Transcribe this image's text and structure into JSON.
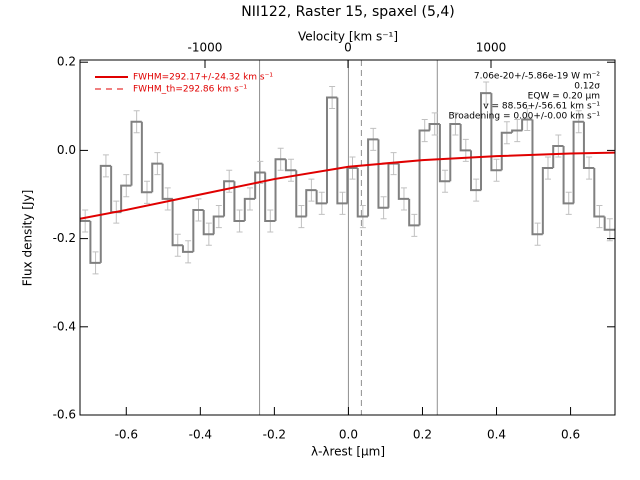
{
  "chart_data": {
    "type": "step",
    "title": "NII122, Raster 15, spaxel (5,4)",
    "xlabel": "λ-λrest [μm]",
    "ylabel": "Flux density [Jy]",
    "x2label": "Velocity [km s⁻¹]",
    "xlim": [
      -0.725,
      0.72
    ],
    "ylim": [
      -0.6,
      0.205
    ],
    "x2lim": [
      -1874,
      1867
    ],
    "xticks": [
      -0.6,
      -0.4,
      -0.2,
      {
        "value": 0,
        "label": "0.0"
      },
      0.2,
      0.4,
      0.6
    ],
    "yticks": [
      -0.6,
      -0.4,
      -0.2,
      {
        "value": 0,
        "label": "0.0"
      },
      0.2
    ],
    "x2ticks": [
      -1000,
      0,
      1000
    ],
    "color": "#808080",
    "x": [
      -0.711,
      -0.683,
      -0.655,
      -0.627,
      -0.6,
      -0.572,
      -0.544,
      -0.516,
      -0.488,
      -0.461,
      -0.433,
      -0.405,
      -0.377,
      -0.35,
      -0.322,
      -0.294,
      -0.266,
      -0.238,
      -0.211,
      -0.183,
      -0.155,
      -0.127,
      -0.1,
      -0.072,
      -0.044,
      -0.016,
      0.011,
      0.039,
      0.067,
      0.095,
      0.122,
      0.15,
      0.178,
      0.206,
      0.233,
      0.261,
      0.289,
      0.317,
      0.345,
      0.372,
      0.4,
      0.428,
      0.456,
      0.483,
      0.511,
      0.539,
      0.567,
      0.595,
      0.622,
      0.65,
      0.678,
      0.706
    ],
    "values": [
      -0.16,
      -0.255,
      -0.035,
      -0.14,
      -0.08,
      0.065,
      -0.095,
      -0.03,
      -0.11,
      -0.215,
      -0.23,
      -0.135,
      -0.19,
      -0.15,
      -0.07,
      -0.16,
      -0.11,
      -0.05,
      -0.16,
      -0.02,
      -0.045,
      -0.15,
      -0.09,
      -0.12,
      0.12,
      -0.12,
      -0.04,
      -0.15,
      0.025,
      -0.13,
      -0.03,
      -0.11,
      -0.17,
      0.045,
      0.06,
      -0.07,
      0.06,
      0.0,
      -0.09,
      0.13,
      -0.045,
      0.04,
      0.045,
      0.07,
      -0.19,
      -0.04,
      0.01,
      -0.12,
      0.065,
      -0.04,
      -0.15,
      -0.18
    ],
    "errors": [
      0.025,
      0.025,
      0.025,
      0.025,
      0.025,
      0.025,
      0.025,
      0.025,
      0.025,
      0.025,
      0.025,
      0.025,
      0.025,
      0.025,
      0.025,
      0.025,
      0.025,
      0.025,
      0.025,
      0.025,
      0.025,
      0.025,
      0.025,
      0.025,
      0.025,
      0.025,
      0.025,
      0.025,
      0.025,
      0.025,
      0.025,
      0.025,
      0.025,
      0.025,
      0.025,
      0.025,
      0.025,
      0.025,
      0.025,
      0.025,
      0.025,
      0.025,
      0.025,
      0.025,
      0.025,
      0.025,
      0.025,
      0.025,
      0.025,
      0.025,
      0.025,
      0.025
    ],
    "fit": {
      "name": "FWHM=292.17+/-24.32 km s⁻¹",
      "color": "#e00000",
      "x": [
        -0.725,
        -0.6,
        -0.4,
        -0.2,
        0,
        0.2,
        0.4,
        0.6,
        0.72
      ],
      "values": [
        -0.155,
        -0.135,
        -0.1,
        -0.065,
        -0.037,
        -0.022,
        -0.013,
        -0.007,
        -0.005
      ]
    },
    "fit_th": {
      "name": "FWHM_th=292.86 km s⁻¹",
      "color": "#e00000"
    },
    "vlines": [
      -0.24,
      0,
      0.24
    ],
    "dashed_vline": 0.035,
    "annotations": [
      "7.06e-20+/-5.86e-19 W m⁻²",
      "0.12σ",
      "EQW = 0.20 μm",
      "v = 88.56+/-56.61 km s⁻¹",
      "Broadening = 0.00+/-0.00 km s⁻¹"
    ]
  }
}
